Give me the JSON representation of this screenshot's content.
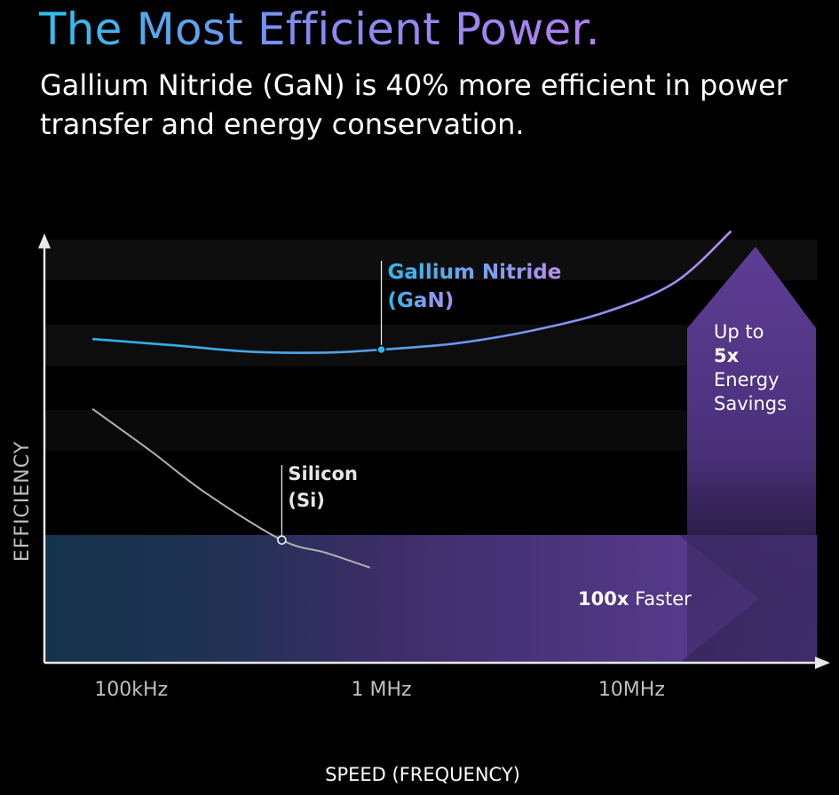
{
  "header": {
    "title": "The Most Efficient Power.",
    "subtitle": "Gallium Nitride (GaN) is 40% more efficient in power transfer and energy conservation."
  },
  "chart_data": {
    "type": "line",
    "title": "The Most Efficient Power.",
    "xlabel": "SPEED (FREQUENCY)",
    "ylabel": "EFFICIENCY",
    "x_scale": "log",
    "x_ticks": [
      "100kHz",
      "1 MHz",
      "10MHz"
    ],
    "x_tick_values_hz": [
      100000,
      1000000,
      10000000
    ],
    "xlim_hz": [
      45000,
      55000000
    ],
    "ylim": [
      0,
      100
    ],
    "y_ticks_shown": false,
    "grid": "horizontal bands",
    "series": [
      {
        "name_lines": [
          "Gallium Nitride",
          "(GaN)"
        ],
        "color": "#2ab3e6",
        "color_end": "#b98af5",
        "x_hz": [
          70000,
          150000,
          300000,
          600000,
          1000000,
          2000000,
          4000000,
          8000000,
          15000000,
          25000000
        ],
        "y": [
          76.5,
          75,
          73.5,
          73.3,
          74,
          75.5,
          78.5,
          83,
          90,
          102
        ],
        "marker": {
          "x_hz": 1000000,
          "y": 74
        }
      },
      {
        "name_lines": [
          "Silicon",
          "(Si)"
        ],
        "color": "#b0b0b0",
        "x_hz": [
          70000,
          120000,
          200000,
          400000,
          600000,
          900000
        ],
        "y": [
          60,
          50,
          40,
          29,
          26,
          22.5
        ],
        "marker": {
          "x_hz": 400000,
          "y": 29
        }
      }
    ],
    "annotations": [
      {
        "bold": "100x",
        "text": " Faster"
      },
      {
        "lines": [
          "Up to",
          "5x",
          "Energy",
          "Savings"
        ],
        "bold_line_index": 1
      }
    ],
    "colors": {
      "gan_start": "#2ab3e6",
      "gan_end": "#b98af5",
      "silicon": "#b0b0b0",
      "arrow": "#5a3a8f",
      "axis": "#e8e8e8",
      "axis_label": "#bfbfbf"
    }
  }
}
